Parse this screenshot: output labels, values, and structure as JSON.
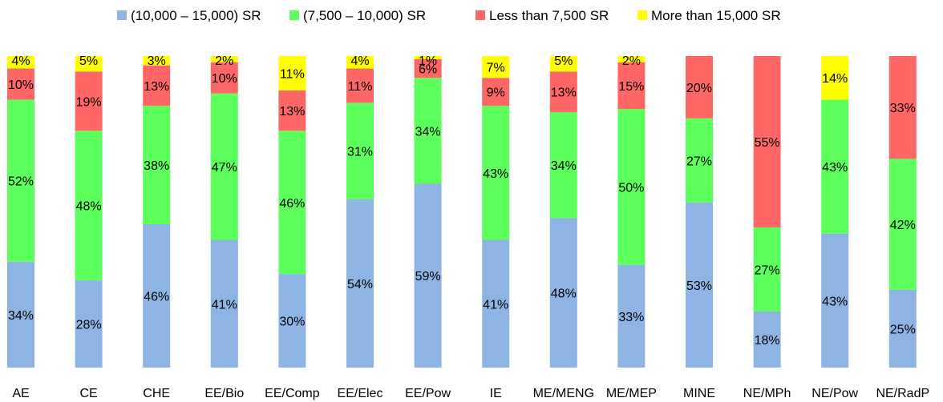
{
  "chart_data": {
    "type": "bar",
    "stacked": true,
    "percent": true,
    "legend_position": "top",
    "grid": false,
    "ylim": [
      0,
      100
    ],
    "categories": [
      "AE",
      "CE",
      "CHE",
      "EE/Bio",
      "EE/Comp",
      "EE/Elec",
      "EE/Pow",
      "IE",
      "ME/MENG",
      "ME/MEP",
      "MINE",
      "NE/MPh",
      "NE/Pow",
      "NE/RadP"
    ],
    "series": [
      {
        "name": "(10,000 – 15,000) SR",
        "color": "#8eb4e3",
        "values": [
          34,
          28,
          46,
          41,
          30,
          54,
          59,
          41,
          48,
          33,
          53,
          18,
          43,
          25
        ]
      },
      {
        "name": "(7,500 – 10,000) SR",
        "color": "#5cff5c",
        "values": [
          52,
          48,
          38,
          47,
          46,
          31,
          34,
          43,
          34,
          50,
          27,
          27,
          43,
          42
        ]
      },
      {
        "name": "Less than 7,500 SR",
        "color": "#ff6666",
        "values": [
          10,
          19,
          13,
          10,
          13,
          11,
          6,
          9,
          13,
          15,
          20,
          55,
          0,
          33
        ]
      },
      {
        "name": "More than 15,000 SR",
        "color": "#ffff00",
        "values": [
          4,
          5,
          3,
          2,
          11,
          4,
          1,
          7,
          5,
          2,
          0,
          0,
          14,
          0
        ]
      }
    ]
  }
}
